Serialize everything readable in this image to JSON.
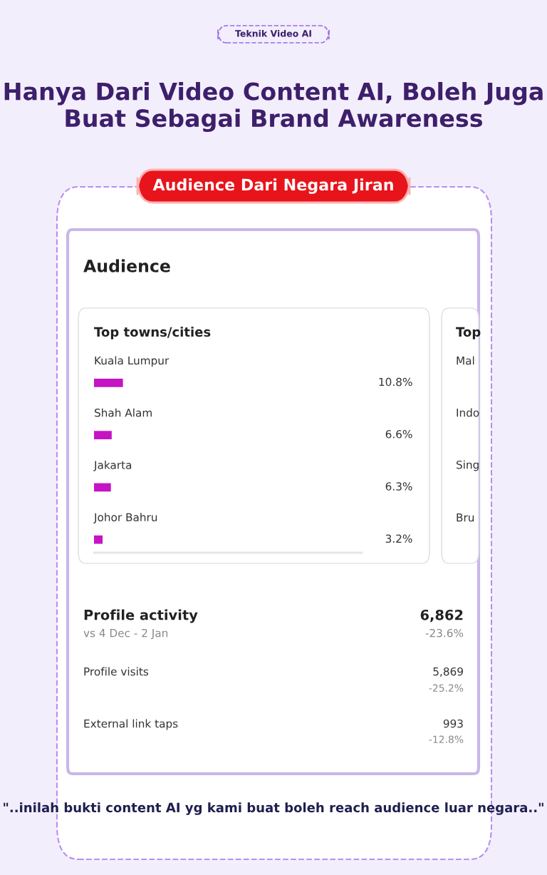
{
  "chart_data": {
    "type": "bar",
    "orientation": "horizontal",
    "title": "Hanya Dari Video Content AI, Boleh Juga Buat Sebagai Brand Awareness",
    "subtitle": "Audience Dari Negara Jiran",
    "categories": [
      "Kuala Lumpur",
      "Shah Alam",
      "Jakarta",
      "Johor Bahru"
    ],
    "values": [
      10.8,
      6.6,
      6.3,
      3.2
    ],
    "value_labels": [
      "10.8%",
      "6.6%",
      "6.3%",
      "3.2%"
    ],
    "color": "#c414c4",
    "xlim": [
      0,
      100
    ],
    "tick_labels": false,
    "annotations": [
      "Teknik Video AI",
      "Audience",
      "Top towns/cities",
      "Top",
      "Mal",
      "Indo",
      "Sing",
      "Bru",
      "Profile activity",
      "vs 4 Dec - 2 Jan",
      "6,862",
      "-23.6%",
      "Profile visits",
      "5,869",
      "-25.2%",
      "External link taps",
      "993",
      "-12.8%",
      "\"..inilah bukti content AI yg kami buat boleh reach audience luar negara..\""
    ]
  }
}
